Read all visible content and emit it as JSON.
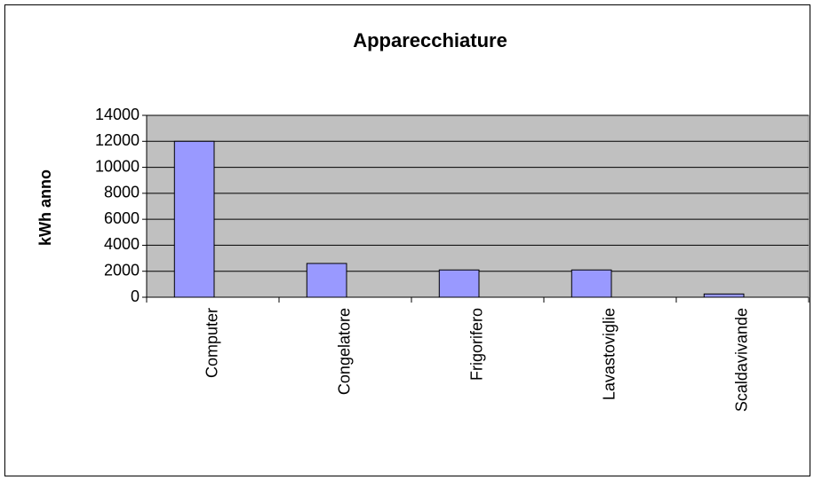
{
  "chart_data": {
    "type": "bar",
    "title": "Apparecchiature",
    "ylabel": "kWh anno",
    "categories": [
      "Computer",
      "Congelatore",
      "Frigorifero",
      "Lavastoviglie",
      "Scaldavivande"
    ],
    "values": [
      12000,
      2600,
      2100,
      2100,
      250
    ],
    "color": "#9999ff",
    "ylim": [
      0,
      14000
    ],
    "yticks": [
      0,
      2000,
      4000,
      6000,
      8000,
      10000,
      12000,
      14000
    ],
    "grid": true
  }
}
